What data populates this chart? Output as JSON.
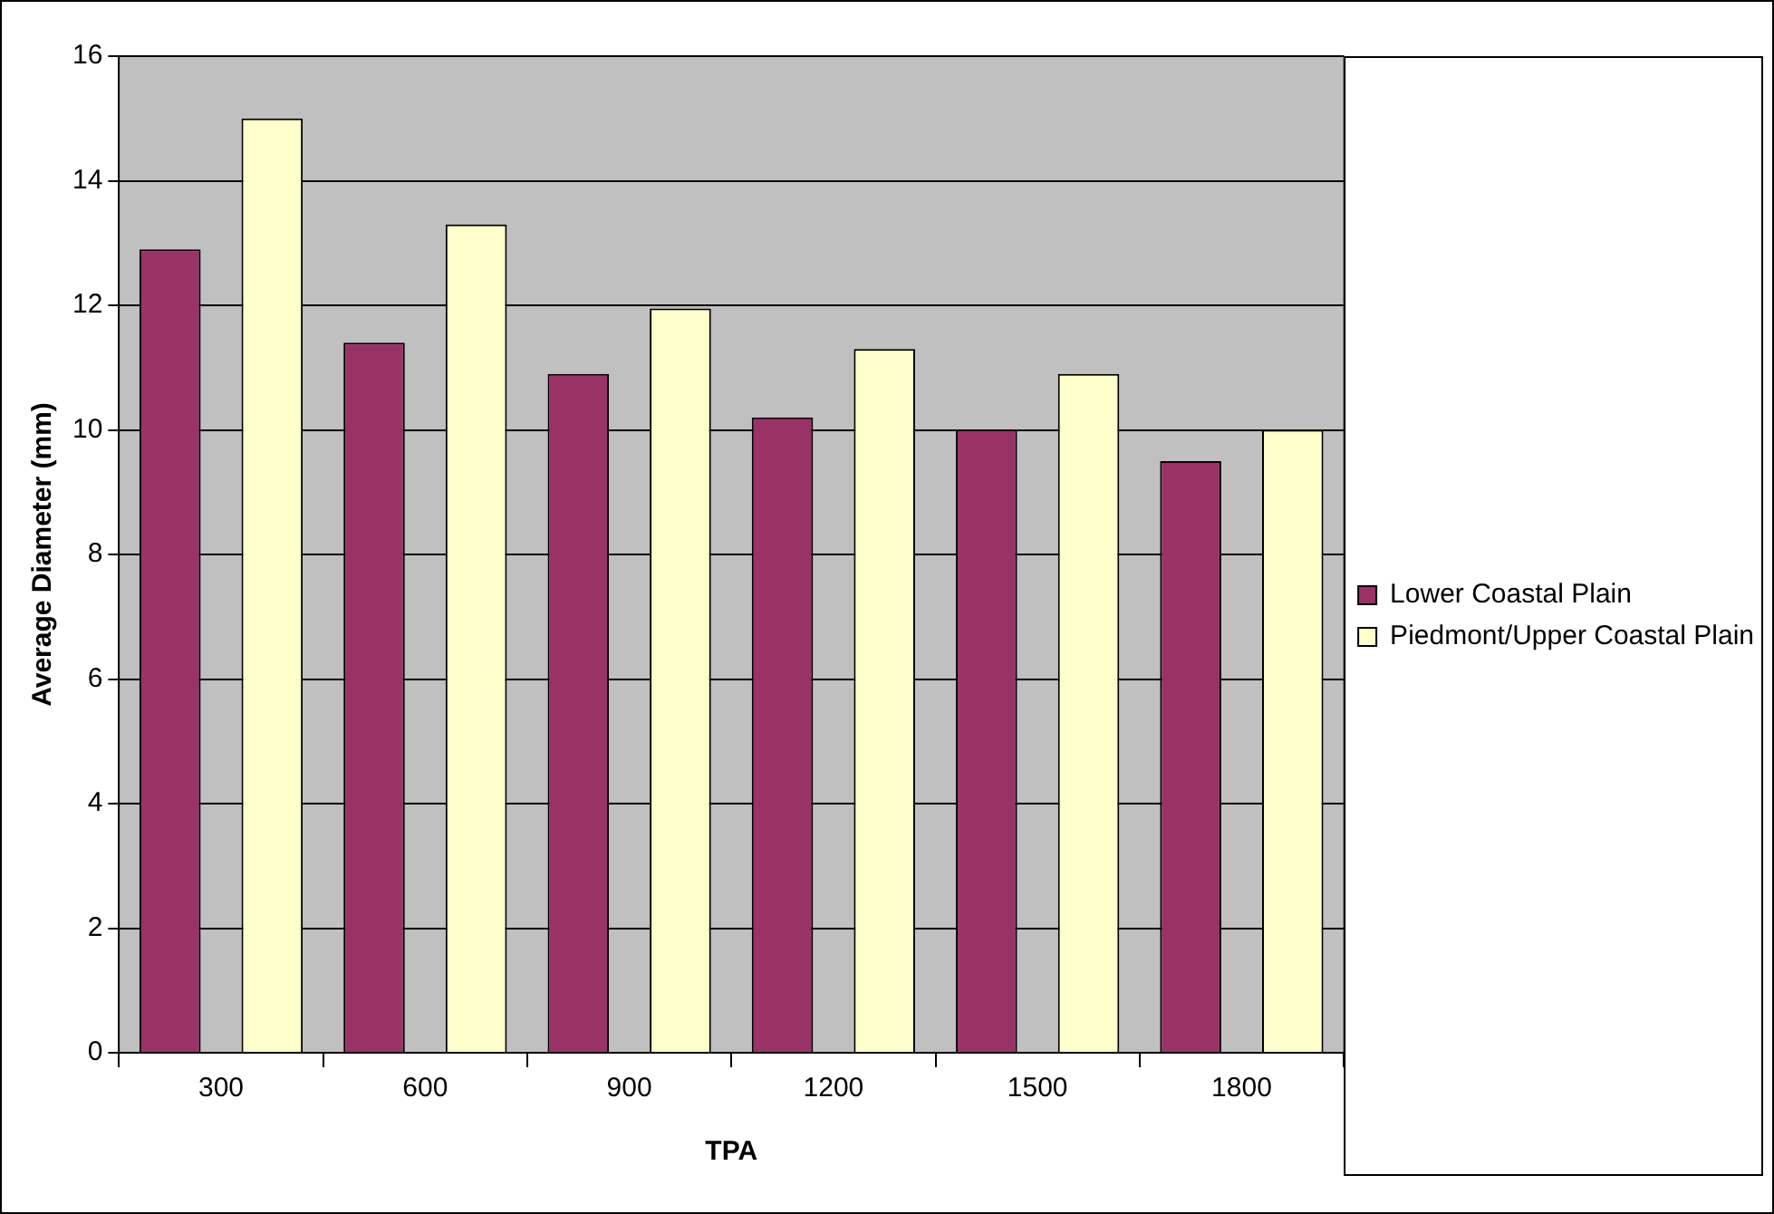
{
  "chart_data": {
    "type": "bar",
    "xlabel": "TPA",
    "ylabel": "Average Diameter (mm)",
    "categories": [
      "300",
      "600",
      "900",
      "1200",
      "1500",
      "1800"
    ],
    "series": [
      {
        "name": "Lower Coastal Plain",
        "color": "#993366",
        "values": [
          12.9,
          11.4,
          10.9,
          10.2,
          10.0,
          9.5
        ]
      },
      {
        "name": "Piedmont/Upper Coastal Plain",
        "color": "#ffffcc",
        "values": [
          15.0,
          13.3,
          11.95,
          11.3,
          10.9,
          10.0
        ]
      }
    ],
    "ylim": [
      0,
      16
    ],
    "yticks": [
      0,
      2,
      4,
      6,
      8,
      10,
      12,
      14,
      16
    ],
    "grid": "y",
    "legend": "right"
  }
}
